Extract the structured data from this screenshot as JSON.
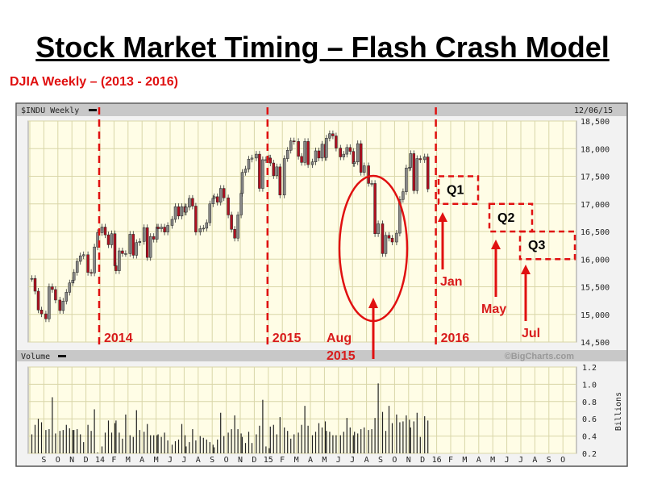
{
  "title": "Stock Market Timing – Flash Crash Model",
  "subtitle": "DJIA Weekly – (2013 - 2016)",
  "chart_data": {
    "type": "candlestick",
    "price_panel_label": "$INDU Weekly",
    "date_label": "12/06/15",
    "volume_panel_label": "Volume",
    "watermark": "©BigCharts.com",
    "volume_unit_label": "Billions",
    "price_ylim": [
      14500,
      18500
    ],
    "price_ticks": [
      "18,500",
      "18,000",
      "17,500",
      "17,000",
      "16,500",
      "16,000",
      "15,500",
      "15,000",
      "14,500"
    ],
    "volume_ylim": [
      0.2,
      1.2
    ],
    "volume_ticks": [
      "1.2",
      "1.0",
      "0.8",
      "0.6",
      "0.4",
      "0.2"
    ],
    "x_range": [
      "2013-08",
      "2016-10"
    ],
    "month_labels": [
      "S",
      "O",
      "N",
      "D",
      "14",
      "F",
      "M",
      "A",
      "M",
      "J",
      "J",
      "A",
      "S",
      "O",
      "N",
      "D",
      "15",
      "F",
      "M",
      "A",
      "M",
      "J",
      "J",
      "A",
      "S",
      "O",
      "N",
      "D",
      "16",
      "F",
      "M",
      "A",
      "M",
      "J",
      "J",
      "A",
      "S",
      "O"
    ],
    "grid": true,
    "colors": {
      "up": "#888888",
      "down": "#b01020",
      "annotation": "#e01010",
      "plot_bg": "#fffde6",
      "grid": "#d9d6a8"
    },
    "weeks": [
      {
        "m": "2013-08",
        "close": [
          15650,
          15420,
          15080,
          15010
        ],
        "vol": [
          0.42,
          0.53,
          0.6,
          0.56
        ]
      },
      {
        "m": "2013-09",
        "close": [
          14920,
          15500,
          15450,
          15260
        ],
        "vol": [
          0.47,
          0.48,
          0.85,
          0.43
        ]
      },
      {
        "m": "2013-10",
        "close": [
          15070,
          15240,
          15400,
          15570,
          15620
        ],
        "vol": [
          0.46,
          0.47,
          0.53,
          0.49,
          0.47
        ]
      },
      {
        "m": "2013-11",
        "close": [
          15760,
          15960,
          16060,
          16080
        ],
        "vol": [
          0.47,
          0.48,
          0.42,
          0.33
        ]
      },
      {
        "m": "2013-12",
        "close": [
          15760,
          15750,
          16220,
          16480
        ],
        "vol": [
          0.53,
          0.46,
          0.71,
          0.21
        ]
      },
      {
        "m": "2014-01",
        "close": [
          16580,
          16440,
          16260,
          16460,
          15880
        ],
        "vol": [
          0.28,
          0.44,
          0.58,
          0.44,
          0.55
        ]
      },
      {
        "m": "2014-02",
        "close": [
          15790,
          16150,
          16100,
          16100
        ],
        "vol": [
          0.58,
          0.44,
          0.37,
          0.65
        ]
      },
      {
        "m": "2014-03",
        "close": [
          16450,
          16070,
          16300,
          16320
        ],
        "vol": [
          0.41,
          0.39,
          0.7,
          0.47
        ]
      },
      {
        "m": "2014-04",
        "close": [
          16570,
          16030,
          16410,
          16360,
          16580
        ],
        "vol": [
          0.45,
          0.54,
          0.41,
          0.41,
          0.41
        ]
      },
      {
        "m": "2014-05",
        "close": [
          16550,
          16580,
          16490,
          16610
        ],
        "vol": [
          0.42,
          0.39,
          0.44,
          0.35
        ]
      },
      {
        "m": "2014-06",
        "close": [
          16720,
          16950,
          16780,
          16950,
          16850
        ],
        "vol": [
          0.3,
          0.34,
          0.36,
          0.54,
          0.41
        ]
      },
      {
        "m": "2014-07",
        "close": [
          16940,
          17100,
          16960,
          16490
        ],
        "vol": [
          0.28,
          0.33,
          0.48,
          0.35
        ]
      },
      {
        "m": "2014-08",
        "close": [
          16550,
          16560,
          16660,
          17000,
          17100
        ],
        "vol": [
          0.4,
          0.38,
          0.36,
          0.33,
          0.3
        ]
      },
      {
        "m": "2014-09",
        "close": [
          17130,
          17030,
          17280,
          17110
        ],
        "vol": [
          0.27,
          0.36,
          0.67,
          0.4
        ]
      },
      {
        "m": "2014-10",
        "close": [
          16800,
          16540,
          16380,
          16800,
          17190
        ],
        "vol": [
          0.44,
          0.48,
          0.64,
          0.48,
          0.43
        ]
      },
      {
        "m": "2014-11",
        "close": [
          17570,
          17630,
          17810,
          17830
        ],
        "vol": [
          0.39,
          0.32,
          0.45,
          0.32
        ]
      },
      {
        "m": "2014-12",
        "close": [
          17900,
          17280,
          17800,
          17800,
          17830
        ],
        "vol": [
          0.42,
          0.52,
          0.82,
          0.28,
          0.26
        ]
      },
      {
        "m": "2015-01",
        "close": [
          17740,
          17510,
          17670,
          17160
        ],
        "vol": [
          0.51,
          0.53,
          0.42,
          0.62
        ]
      },
      {
        "m": "2015-02",
        "close": [
          17820,
          17970,
          18140,
          18130
        ],
        "vol": [
          0.5,
          0.46,
          0.37,
          0.42
        ]
      },
      {
        "m": "2015-03",
        "close": [
          17860,
          17750,
          18130,
          17710
        ],
        "vol": [
          0.44,
          0.53,
          0.75,
          0.52
        ]
      },
      {
        "m": "2015-04",
        "close": [
          17760,
          17960,
          17830,
          18080,
          17840
        ],
        "vol": [
          0.41,
          0.45,
          0.55,
          0.5,
          0.57
        ]
      },
      {
        "m": "2015-05",
        "close": [
          18190,
          18270,
          18230,
          18010
        ],
        "vol": [
          0.46,
          0.45,
          0.41,
          0.41
        ]
      },
      {
        "m": "2015-06",
        "close": [
          17850,
          17900,
          18020,
          17950,
          17730
        ],
        "vol": [
          0.41,
          0.45,
          0.61,
          0.5,
          0.41
        ]
      },
      {
        "m": "2015-07",
        "close": [
          17760,
          18090,
          17570,
          17690
        ],
        "vol": [
          0.45,
          0.43,
          0.48,
          0.5
        ]
      },
      {
        "m": "2015-08",
        "close": [
          17370,
          17370,
          16460,
          16640
        ],
        "vol": [
          0.47,
          0.48,
          0.61,
          1.01
        ]
      },
      {
        "m": "2015-09",
        "close": [
          16100,
          16430,
          16380,
          16310
        ],
        "vol": [
          0.68,
          0.46,
          0.75,
          0.55
        ]
      },
      {
        "m": "2015-10",
        "close": [
          16470,
          17080,
          17220,
          17650,
          17660
        ],
        "vol": [
          0.65,
          0.56,
          0.57,
          0.64,
          0.59
        ]
      },
      {
        "m": "2015-11",
        "close": [
          17910,
          17240,
          17820,
          17800
        ],
        "vol": [
          0.5,
          0.57,
          0.67,
          0.39
        ]
      },
      {
        "m": "2015-12",
        "close": [
          17850,
          17270
        ],
        "vol": [
          0.63,
          0.58
        ]
      }
    ],
    "annotations": {
      "year_lines": [
        {
          "m": "2014-01",
          "label": "2014"
        },
        {
          "m": "2015-01",
          "label": "2015"
        },
        {
          "m": "2016-01",
          "label": "2016"
        }
      ],
      "crash_label_1": "Aug",
      "crash_label_2": "2015",
      "targets": [
        {
          "label": "Q1",
          "month_label": "Jan",
          "range": [
            17000,
            17500
          ]
        },
        {
          "label": "Q2",
          "month_label": "May",
          "range": [
            16500,
            17000
          ]
        },
        {
          "label": "Q3",
          "month_label": "Jul",
          "range": [
            16000,
            16500
          ]
        }
      ]
    }
  }
}
